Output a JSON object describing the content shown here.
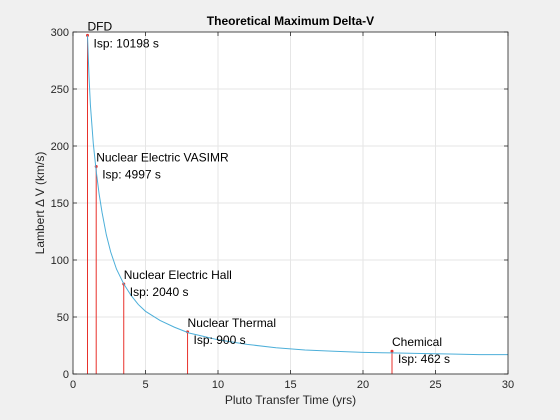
{
  "chart_data": {
    "type": "line",
    "title": "Theoretical Maximum Delta-V",
    "xlabel": "Pluto Transfer Time (yrs)",
    "ylabel": "Lambert Δ V (km/s)",
    "xlim": [
      0,
      30
    ],
    "ylim": [
      0,
      300
    ],
    "xticks": [
      0,
      5,
      10,
      15,
      20,
      25,
      30
    ],
    "yticks": [
      0,
      50,
      100,
      150,
      200,
      250,
      300
    ],
    "grid": true,
    "colors": {
      "curve": "#4dafd9",
      "markers": "#e8312b",
      "background": "#f0f0f0",
      "axes_bg": "#ffffff"
    },
    "curve": {
      "x": [
        1.0,
        1.1,
        1.2,
        1.4,
        1.6,
        1.8,
        2.0,
        2.3,
        2.6,
        3.0,
        3.5,
        4.0,
        4.5,
        5.0,
        6.0,
        7.0,
        8.0,
        9.0,
        10.0,
        12.0,
        14.0,
        16.0,
        18.0,
        20.0,
        22.0,
        24.0,
        26.0,
        28.0,
        30.0
      ],
      "y": [
        297,
        262,
        236,
        202,
        178,
        158,
        142,
        122,
        107,
        92,
        79,
        69,
        61,
        55,
        47,
        41,
        36,
        33,
        30,
        26,
        23,
        21,
        20,
        19,
        18.5,
        18,
        17.5,
        17,
        17
      ]
    },
    "markers": [
      {
        "x": 1.0,
        "y": 297,
        "name": "DFD",
        "isp": "Isp: 10198 s"
      },
      {
        "x": 1.6,
        "y": 182,
        "name": "Nuclear Electric VASIMR",
        "isp": "Isp: 4997 s"
      },
      {
        "x": 3.5,
        "y": 79,
        "name": "Nuclear Electric Hall",
        "isp": "Isp: 2040 s"
      },
      {
        "x": 7.9,
        "y": 37,
        "name": "Nuclear Thermal",
        "isp": "Isp: 900 s"
      },
      {
        "x": 22.0,
        "y": 20,
        "name": "Chemical",
        "isp": "Isp: 462 s"
      }
    ]
  }
}
